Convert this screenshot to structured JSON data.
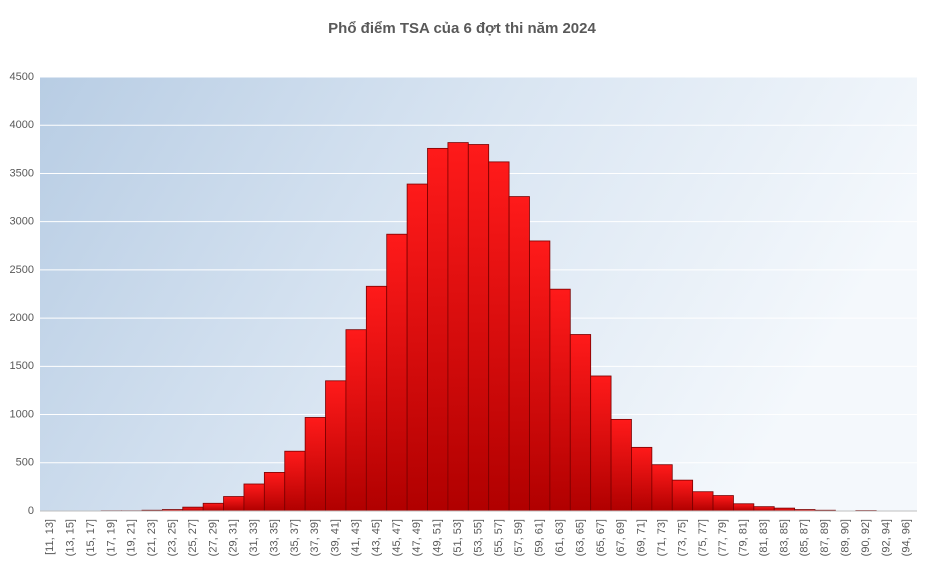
{
  "chart_data": {
    "type": "bar",
    "title": "Phổ điểm TSA của 6 đợt thi năm 2024",
    "categories": [
      "[11, 13]",
      "(13, 15]",
      "(15, 17]",
      "(17, 19]",
      "(19, 21]",
      "(21, 23]",
      "(23, 25]",
      "(25, 27]",
      "(27, 29]",
      "(29, 31]",
      "(31, 33]",
      "(33, 35]",
      "(35, 37]",
      "(37, 39]",
      "(39, 41]",
      "(41, 43]",
      "(43, 45]",
      "(45, 47]",
      "(47, 49]",
      "(49, 51]",
      "(51, 53]",
      "(53, 55]",
      "(55, 57]",
      "(57, 59]",
      "(59, 61]",
      "(61, 63]",
      "(63, 65]",
      "(65, 67]",
      "(67, 69]",
      "(69, 71]",
      "(71, 73]",
      "(73, 75]",
      "(75, 77]",
      "(77, 79]",
      "(79, 81]",
      "(81, 83]",
      "(83, 85]",
      "(85, 87]",
      "(87, 89]",
      "(89, 90]",
      "(90, 92]",
      "(92, 94]",
      "(94, 96]"
    ],
    "values": [
      0,
      0,
      0,
      3,
      3,
      8,
      15,
      40,
      80,
      150,
      280,
      400,
      620,
      970,
      1350,
      1880,
      2330,
      2870,
      3390,
      3760,
      3820,
      3800,
      3620,
      3260,
      2800,
      2300,
      1830,
      1400,
      950,
      660,
      480,
      320,
      200,
      160,
      75,
      45,
      30,
      15,
      8,
      0,
      5,
      0,
      0
    ],
    "color": "#ff0000",
    "ylim": [
      0,
      4500
    ],
    "yticks": [
      0,
      500,
      1000,
      1500,
      2000,
      2500,
      3000,
      3500,
      4000,
      4500
    ],
    "grid": true
  }
}
